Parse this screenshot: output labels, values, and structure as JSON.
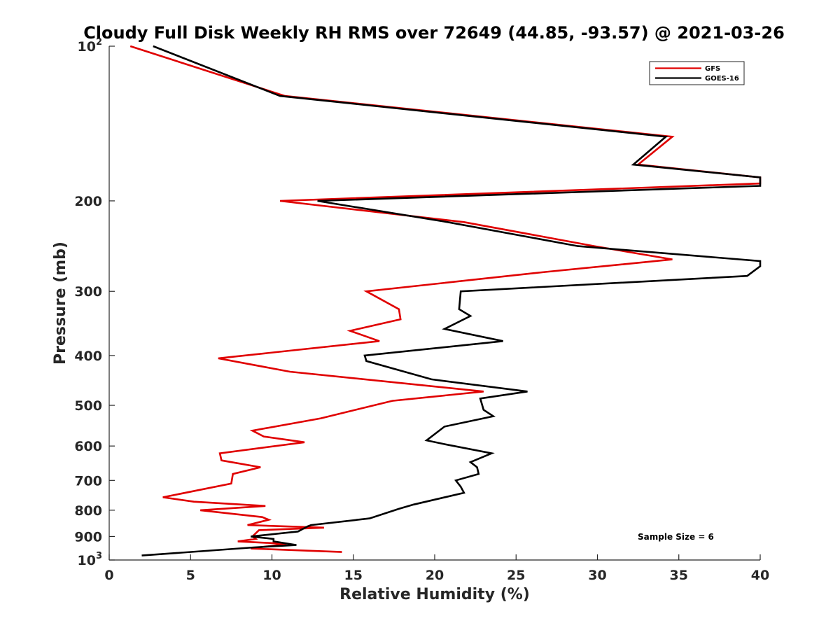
{
  "chart_data": {
    "type": "line",
    "title": "Cloudy Full Disk Weekly RH RMS over 72649 (44.85, -93.57) @ 2021-03-26",
    "xlabel": "Relative Humidity (%)",
    "ylabel": "Pressure (mb)",
    "xlim": [
      0,
      40
    ],
    "ylim": [
      100,
      1000
    ],
    "yscale": "log",
    "y_reversed": true,
    "grid": false,
    "legend_position": "top-right",
    "x_ticks": [
      {
        "value": 0,
        "label": "0"
      },
      {
        "value": 5,
        "label": "5"
      },
      {
        "value": 10,
        "label": "10"
      },
      {
        "value": 15,
        "label": "15"
      },
      {
        "value": 20,
        "label": "20"
      },
      {
        "value": 25,
        "label": "25"
      },
      {
        "value": 30,
        "label": "30"
      },
      {
        "value": 35,
        "label": "35"
      },
      {
        "value": 40,
        "label": "40"
      }
    ],
    "y_ticks": [
      {
        "value": 100,
        "label": "10",
        "sup": "2"
      },
      {
        "value": 200,
        "label": "200"
      },
      {
        "value": 300,
        "label": "300"
      },
      {
        "value": 400,
        "label": "400"
      },
      {
        "value": 500,
        "label": "500"
      },
      {
        "value": 600,
        "label": "600"
      },
      {
        "value": 700,
        "label": "700"
      },
      {
        "value": 800,
        "label": "800"
      },
      {
        "value": 900,
        "label": "900"
      },
      {
        "value": 1000,
        "label": "10",
        "sup": "3"
      }
    ],
    "annotation": "Sample Size = 6",
    "series": [
      {
        "name": "GFS",
        "color": "#e00000",
        "points": [
          [
            1.3,
            100
          ],
          [
            10.8,
            125
          ],
          [
            34.6,
            150
          ],
          [
            32.5,
            170
          ],
          [
            40,
            180
          ],
          [
            40,
            185
          ],
          [
            10.5,
            200
          ],
          [
            21.8,
            220
          ],
          [
            29.8,
            245
          ],
          [
            34.6,
            260
          ],
          [
            26.8,
            275
          ],
          [
            15.8,
            300
          ],
          [
            17.8,
            325
          ],
          [
            17.9,
            340
          ],
          [
            14.8,
            358
          ],
          [
            16.6,
            375
          ],
          [
            6.7,
            405
          ],
          [
            11.1,
            430
          ],
          [
            23.0,
            470
          ],
          [
            17.4,
            490
          ],
          [
            13.0,
            530
          ],
          [
            8.8,
            560
          ],
          [
            9.5,
            575
          ],
          [
            12.0,
            590
          ],
          [
            6.8,
            620
          ],
          [
            6.9,
            640
          ],
          [
            9.3,
            660
          ],
          [
            7.6,
            680
          ],
          [
            7.5,
            710
          ],
          [
            3.3,
            755
          ],
          [
            5.2,
            770
          ],
          [
            9.6,
            785
          ],
          [
            5.6,
            800
          ],
          [
            9.4,
            825
          ],
          [
            9.8,
            835
          ],
          [
            8.5,
            855
          ],
          [
            13.2,
            865
          ],
          [
            9.2,
            875
          ],
          [
            8.8,
            900
          ],
          [
            9.0,
            910
          ],
          [
            7.9,
            920
          ],
          [
            10.9,
            930
          ],
          [
            8.7,
            950
          ],
          [
            14.3,
            965
          ]
        ]
      },
      {
        "name": "GOES-16",
        "color": "#000000",
        "points": [
          [
            2.7,
            100
          ],
          [
            10.5,
            125
          ],
          [
            34.2,
            150
          ],
          [
            32.2,
            170
          ],
          [
            40,
            180
          ],
          [
            40,
            187
          ],
          [
            12.8,
            200
          ],
          [
            20.8,
            220
          ],
          [
            28.8,
            245
          ],
          [
            40,
            262
          ],
          [
            40,
            268
          ],
          [
            39.2,
            280
          ],
          [
            21.6,
            300
          ],
          [
            21.5,
            325
          ],
          [
            22.2,
            335
          ],
          [
            20.6,
            355
          ],
          [
            24.2,
            375
          ],
          [
            15.7,
            400
          ],
          [
            15.8,
            410
          ],
          [
            19.8,
            445
          ],
          [
            25.7,
            470
          ],
          [
            22.8,
            485
          ],
          [
            23.0,
            510
          ],
          [
            23.6,
            525
          ],
          [
            20.6,
            550
          ],
          [
            19.5,
            585
          ],
          [
            20.6,
            595
          ],
          [
            23.5,
            620
          ],
          [
            22.2,
            645
          ],
          [
            22.6,
            660
          ],
          [
            22.7,
            680
          ],
          [
            21.3,
            700
          ],
          [
            21.6,
            720
          ],
          [
            21.8,
            740
          ],
          [
            18.7,
            780
          ],
          [
            17.8,
            795
          ],
          [
            16.0,
            830
          ],
          [
            12.4,
            855
          ],
          [
            12.2,
            860
          ],
          [
            11.6,
            880
          ],
          [
            8.7,
            900
          ],
          [
            10.1,
            910
          ],
          [
            10.1,
            920
          ],
          [
            11.5,
            935
          ],
          [
            8.9,
            945
          ],
          [
            2.0,
            980
          ]
        ]
      }
    ]
  }
}
